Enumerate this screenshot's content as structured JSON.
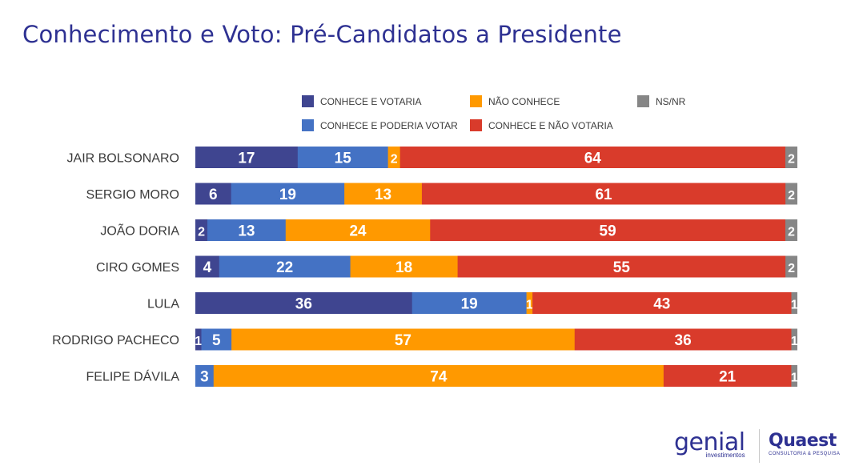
{
  "title": "Conhecimento e Voto: Pré-Candidatos a Presidente",
  "chart_data": {
    "type": "stacked-bar-horizontal",
    "title": "Conhecimento e Voto: Pré-Candidatos a Presidente",
    "xlim": [
      0,
      100
    ],
    "categories": [
      "JAIR BOLSONARO",
      "SERGIO MORO",
      "JOÃO DORIA",
      "CIRO GOMES",
      "LULA",
      "RODRIGO PACHECO",
      "FELIPE DÁVILA"
    ],
    "series": [
      {
        "name": "CONHECE E VOTARIA",
        "color": "#3f4590",
        "values": [
          17,
          6,
          2,
          4,
          36,
          1,
          0
        ]
      },
      {
        "name": "CONHECE E PODERIA VOTAR",
        "color": "#4472c4",
        "values": [
          15,
          19,
          13,
          22,
          19,
          5,
          3
        ]
      },
      {
        "name": "NÃO CONHECE",
        "color": "#ff9900",
        "values": [
          2,
          13,
          24,
          18,
          1,
          57,
          74
        ]
      },
      {
        "name": "CONHECE E NÃO VOTARIA",
        "color": "#d93b2b",
        "values": [
          64,
          61,
          59,
          55,
          43,
          36,
          21
        ]
      },
      {
        "name": "NS/NR",
        "color": "#868686",
        "values": [
          2,
          2,
          2,
          2,
          1,
          1,
          1
        ]
      }
    ]
  },
  "legend": [
    {
      "label": "CONHECE E VOTARIA",
      "color": "#3f4590"
    },
    {
      "label": "NÃO CONHECE",
      "color": "#ff9900"
    },
    {
      "label": "NS/NR",
      "color": "#868686"
    },
    {
      "label": "CONHECE E PODERIA VOTAR",
      "color": "#4472c4"
    },
    {
      "label": "CONHECE E NÃO VOTARIA",
      "color": "#d93b2b"
    }
  ],
  "logos": {
    "genial": "genial",
    "genial_sub": "investimentos",
    "quaest": "Quaest",
    "quaest_sub": "CONSULTORIA & PESQUISA"
  }
}
